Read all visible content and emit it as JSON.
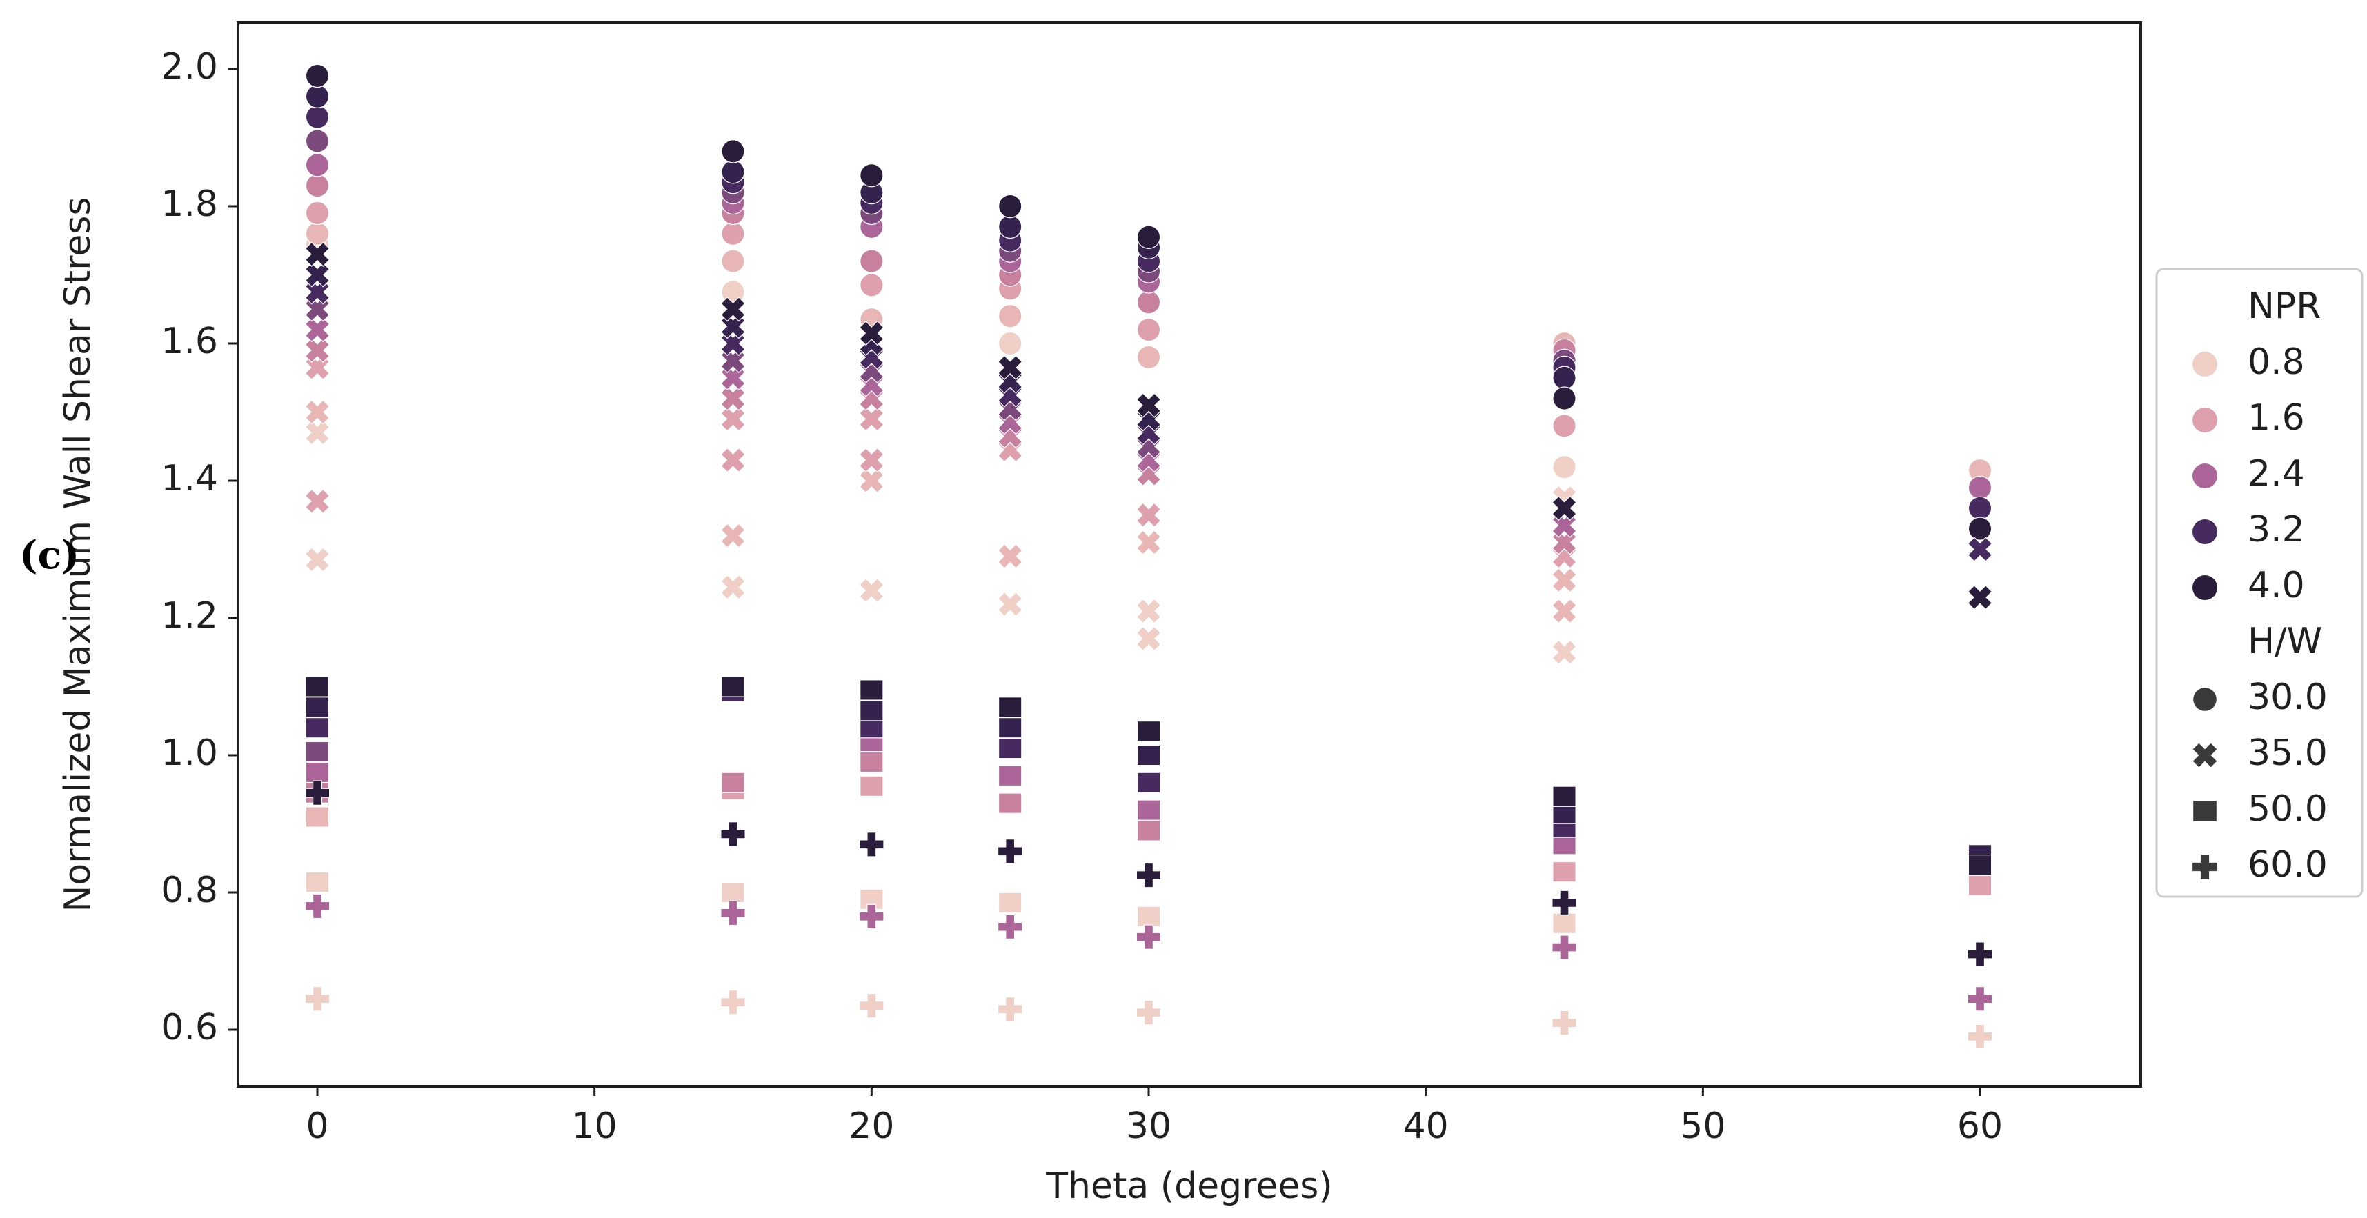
{
  "figure_label": "(c)",
  "chart_data": {
    "type": "scatter",
    "xlabel": "Theta (degrees)",
    "ylabel": "Normalized Maximum Wall Shear Stress",
    "x_ticks": [
      0,
      10,
      20,
      30,
      40,
      50,
      60
    ],
    "y_ticks": [
      2.0,
      1.8,
      1.6,
      1.4,
      1.2,
      1.0,
      0.8,
      0.6
    ],
    "xlim": [
      -2.9,
      65.8
    ],
    "ylim": [
      0.52,
      2.07
    ],
    "grid": false,
    "legend_position": "right-outside",
    "hue_title": "NPR",
    "style_title": "H/W",
    "hue_levels": [
      {
        "npr": "0.8",
        "color": "#efcfc6"
      },
      {
        "npr": "1.6",
        "color": "#dfa0ad"
      },
      {
        "npr": "2.4",
        "color": "#ab6598"
      },
      {
        "npr": "3.2",
        "color": "#462a60"
      },
      {
        "npr": "4.0",
        "color": "#2a1d3b"
      }
    ],
    "style_levels": [
      {
        "hw": "30.0",
        "marker": "circle"
      },
      {
        "hw": "35.0",
        "marker": "x"
      },
      {
        "hw": "50.0",
        "marker": "square"
      },
      {
        "hw": "60.0",
        "marker": "plus"
      }
    ],
    "palette_full": {
      "0.8": "#efcfc6",
      "1.2": "#e9b6b6",
      "1.6": "#dfa0ad",
      "2.0": "#c8809f",
      "2.4": "#ab6598",
      "2.8": "#7d4a7e",
      "3.2": "#462a60",
      "3.6": "#36224e",
      "4.0": "#291d3b"
    },
    "legend_marker_color": "#3a3a3a",
    "axis_color": "#1f1f1f",
    "groups": [
      {
        "theta": 0,
        "hw": "30.0",
        "marker": "circle",
        "points": [
          [
            "0.8",
            1.745
          ],
          [
            "1.2",
            1.76
          ],
          [
            "1.6",
            1.79
          ],
          [
            "2.0",
            1.83
          ],
          [
            "2.4",
            1.86
          ],
          [
            "2.8",
            1.895
          ],
          [
            "3.2",
            1.93
          ],
          [
            "3.6",
            1.96
          ],
          [
            "4.0",
            1.99
          ]
        ]
      },
      {
        "theta": 0,
        "hw": "35.0",
        "marker": "x",
        "points": [
          [
            "0.8",
            1.285
          ],
          [
            "1.6",
            1.37
          ],
          [
            "0.8",
            1.47
          ],
          [
            "1.2",
            1.5
          ],
          [
            "1.6",
            1.565
          ],
          [
            "2.0",
            1.59
          ],
          [
            "2.4",
            1.62
          ],
          [
            "2.8",
            1.65
          ],
          [
            "3.2",
            1.675
          ],
          [
            "3.6",
            1.7
          ],
          [
            "4.0",
            1.73
          ]
        ]
      },
      {
        "theta": 0,
        "hw": "50.0",
        "marker": "square",
        "points": [
          [
            "0.8",
            0.815
          ],
          [
            "1.2",
            0.91
          ],
          [
            "2.0",
            0.945
          ],
          [
            "2.4",
            0.975
          ],
          [
            "2.8",
            1.005
          ],
          [
            "3.2",
            1.04
          ],
          [
            "3.6",
            1.07
          ],
          [
            "4.0",
            1.1
          ]
        ]
      },
      {
        "theta": 0,
        "hw": "60.0",
        "marker": "plus",
        "points": [
          [
            "0.8",
            0.645
          ],
          [
            "2.4",
            0.78
          ],
          [
            "4.0",
            0.945
          ]
        ]
      },
      {
        "theta": 15,
        "hw": "30.0",
        "marker": "circle",
        "points": [
          [
            "0.8",
            1.675
          ],
          [
            "1.2",
            1.72
          ],
          [
            "1.6",
            1.76
          ],
          [
            "2.0",
            1.79
          ],
          [
            "2.4",
            1.805
          ],
          [
            "2.8",
            1.82
          ],
          [
            "3.2",
            1.835
          ],
          [
            "3.6",
            1.85
          ],
          [
            "4.0",
            1.88
          ]
        ]
      },
      {
        "theta": 15,
        "hw": "35.0",
        "marker": "x",
        "points": [
          [
            "0.8",
            1.245
          ],
          [
            "1.2",
            1.32
          ],
          [
            "1.6",
            1.43
          ],
          [
            "1.6",
            1.49
          ],
          [
            "2.0",
            1.52
          ],
          [
            "2.4",
            1.55
          ],
          [
            "2.8",
            1.575
          ],
          [
            "3.2",
            1.6
          ],
          [
            "3.6",
            1.625
          ],
          [
            "4.0",
            1.65
          ]
        ]
      },
      {
        "theta": 15,
        "hw": "50.0",
        "marker": "square",
        "points": [
          [
            "0.8",
            0.8
          ],
          [
            "1.6",
            0.95
          ],
          [
            "2.0",
            0.96
          ],
          [
            "3.2",
            1.093
          ],
          [
            "4.0",
            1.1
          ]
        ]
      },
      {
        "theta": 15,
        "hw": "60.0",
        "marker": "plus",
        "points": [
          [
            "0.8",
            0.64
          ],
          [
            "2.4",
            0.77
          ],
          [
            "4.0",
            0.885
          ]
        ]
      },
      {
        "theta": 20,
        "hw": "30.0",
        "marker": "circle",
        "points": [
          [
            "1.2",
            1.635
          ],
          [
            "1.6",
            1.685
          ],
          [
            "2.0",
            1.72
          ],
          [
            "2.4",
            1.77
          ],
          [
            "2.8",
            1.79
          ],
          [
            "3.2",
            1.805
          ],
          [
            "3.6",
            1.82
          ],
          [
            "4.0",
            1.845
          ]
        ]
      },
      {
        "theta": 20,
        "hw": "35.0",
        "marker": "x",
        "points": [
          [
            "0.8",
            1.24
          ],
          [
            "1.2",
            1.4
          ],
          [
            "1.6",
            1.43
          ],
          [
            "1.6",
            1.49
          ],
          [
            "2.0",
            1.52
          ],
          [
            "2.4",
            1.54
          ],
          [
            "2.8",
            1.56
          ],
          [
            "3.2",
            1.58
          ],
          [
            "3.6",
            1.6
          ],
          [
            "4.0",
            1.615
          ]
        ]
      },
      {
        "theta": 20,
        "hw": "50.0",
        "marker": "square",
        "points": [
          [
            "0.8",
            0.79
          ],
          [
            "1.6",
            0.955
          ],
          [
            "2.0",
            0.99
          ],
          [
            "2.4",
            1.02
          ],
          [
            "3.2",
            1.04
          ],
          [
            "3.6",
            1.065
          ],
          [
            "4.0",
            1.095
          ]
        ]
      },
      {
        "theta": 20,
        "hw": "60.0",
        "marker": "plus",
        "points": [
          [
            "0.8",
            0.635
          ],
          [
            "2.4",
            0.765
          ],
          [
            "4.0",
            0.87
          ]
        ]
      },
      {
        "theta": 25,
        "hw": "30.0",
        "marker": "circle",
        "points": [
          [
            "0.8",
            1.6
          ],
          [
            "1.2",
            1.64
          ],
          [
            "1.6",
            1.68
          ],
          [
            "2.0",
            1.7
          ],
          [
            "2.4",
            1.72
          ],
          [
            "2.8",
            1.735
          ],
          [
            "3.2",
            1.75
          ],
          [
            "3.6",
            1.77
          ],
          [
            "4.0",
            1.8
          ]
        ]
      },
      {
        "theta": 25,
        "hw": "35.0",
        "marker": "x",
        "points": [
          [
            "0.8",
            1.22
          ],
          [
            "1.2",
            1.29
          ],
          [
            "1.6",
            1.445
          ],
          [
            "2.0",
            1.465
          ],
          [
            "2.4",
            1.485
          ],
          [
            "2.8",
            1.505
          ],
          [
            "3.2",
            1.525
          ],
          [
            "3.6",
            1.545
          ],
          [
            "4.0",
            1.565
          ]
        ]
      },
      {
        "theta": 25,
        "hw": "50.0",
        "marker": "square",
        "points": [
          [
            "0.8",
            0.785
          ],
          [
            "2.0",
            0.93
          ],
          [
            "2.4",
            0.97
          ],
          [
            "3.2",
            1.01
          ],
          [
            "3.6",
            1.04
          ],
          [
            "4.0",
            1.07
          ]
        ]
      },
      {
        "theta": 25,
        "hw": "60.0",
        "marker": "plus",
        "points": [
          [
            "0.8",
            0.63
          ],
          [
            "2.4",
            0.75
          ],
          [
            "4.0",
            0.86
          ]
        ]
      },
      {
        "theta": 30,
        "hw": "30.0",
        "marker": "circle",
        "points": [
          [
            "1.2",
            1.58
          ],
          [
            "1.6",
            1.62
          ],
          [
            "2.0",
            1.66
          ],
          [
            "2.4",
            1.69
          ],
          [
            "2.8",
            1.705
          ],
          [
            "3.2",
            1.72
          ],
          [
            "3.6",
            1.74
          ],
          [
            "4.0",
            1.755
          ]
        ]
      },
      {
        "theta": 30,
        "hw": "35.0",
        "marker": "x",
        "points": [
          [
            "0.8",
            1.17
          ],
          [
            "0.8",
            1.21
          ],
          [
            "1.2",
            1.31
          ],
          [
            "1.6",
            1.35
          ],
          [
            "2.0",
            1.41
          ],
          [
            "2.4",
            1.43
          ],
          [
            "2.8",
            1.45
          ],
          [
            "3.2",
            1.47
          ],
          [
            "3.6",
            1.49
          ],
          [
            "4.0",
            1.51
          ]
        ]
      },
      {
        "theta": 30,
        "hw": "50.0",
        "marker": "square",
        "points": [
          [
            "0.8",
            0.765
          ],
          [
            "2.0",
            0.89
          ],
          [
            "2.4",
            0.92
          ],
          [
            "3.2",
            0.96
          ],
          [
            "3.6",
            1.0
          ],
          [
            "4.0",
            1.035
          ]
        ]
      },
      {
        "theta": 30,
        "hw": "60.0",
        "marker": "plus",
        "points": [
          [
            "0.8",
            0.625
          ],
          [
            "2.4",
            0.735
          ],
          [
            "4.0",
            0.825
          ]
        ]
      },
      {
        "theta": 45,
        "hw": "30.0",
        "marker": "circle",
        "points": [
          [
            "0.8",
            1.42
          ],
          [
            "1.6",
            1.48
          ],
          [
            "1.2",
            1.6
          ],
          [
            "2.0",
            1.59
          ],
          [
            "2.8",
            1.575
          ],
          [
            "3.2",
            1.565
          ],
          [
            "3.6",
            1.55
          ],
          [
            "4.0",
            1.52
          ]
        ]
      },
      {
        "theta": 45,
        "hw": "35.0",
        "marker": "x",
        "points": [
          [
            "0.8",
            1.15
          ],
          [
            "1.2",
            1.21
          ],
          [
            "1.2",
            1.255
          ],
          [
            "1.6",
            1.29
          ],
          [
            "2.0",
            1.31
          ],
          [
            "2.4",
            1.335
          ],
          [
            "0.8",
            1.375
          ],
          [
            "4.0",
            1.36
          ]
        ]
      },
      {
        "theta": 45,
        "hw": "50.0",
        "marker": "square",
        "points": [
          [
            "0.8",
            0.755
          ],
          [
            "1.6",
            0.83
          ],
          [
            "2.4",
            0.87
          ],
          [
            "3.2",
            0.895
          ],
          [
            "3.6",
            0.915
          ],
          [
            "4.0",
            0.94
          ]
        ]
      },
      {
        "theta": 45,
        "hw": "60.0",
        "marker": "plus",
        "points": [
          [
            "0.8",
            0.61
          ],
          [
            "2.4",
            0.72
          ],
          [
            "4.0",
            0.785
          ]
        ]
      },
      {
        "theta": 60,
        "hw": "30.0",
        "marker": "circle",
        "points": [
          [
            "1.2",
            1.415
          ],
          [
            "2.4",
            1.39
          ],
          [
            "3.2",
            1.36
          ],
          [
            "4.0",
            1.33
          ]
        ]
      },
      {
        "theta": 60,
        "hw": "35.0",
        "marker": "x",
        "points": [
          [
            "3.2",
            1.3
          ],
          [
            "4.0",
            1.23
          ]
        ]
      },
      {
        "theta": 60,
        "hw": "50.0",
        "marker": "square",
        "points": [
          [
            "3.6",
            0.855
          ],
          [
            "1.6",
            0.81
          ],
          [
            "4.0",
            0.84
          ]
        ]
      },
      {
        "theta": 60,
        "hw": "60.0",
        "marker": "plus",
        "points": [
          [
            "0.8",
            0.59
          ],
          [
            "2.4",
            0.645
          ],
          [
            "4.0",
            0.71
          ]
        ]
      }
    ]
  }
}
